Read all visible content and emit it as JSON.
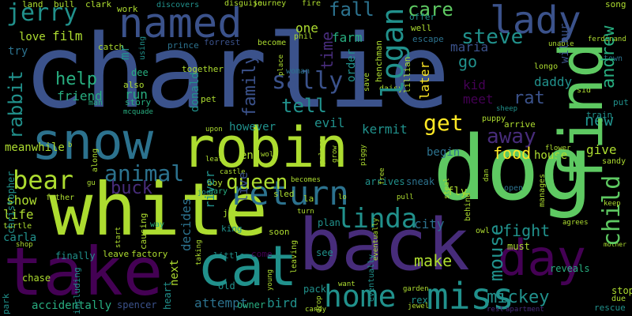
{
  "palette": {
    "background": "#000000",
    "deep_purple": "#440154",
    "purple": "#472c7a",
    "indigo": "#3b528b",
    "blue": "#2c728e",
    "teal": "#21918c",
    "green_teal": "#28ae80",
    "green": "#5ec962",
    "lime": "#addc30",
    "yellow": "#fde725"
  },
  "words": {
    "charlie": "charlie",
    "dog": "dog",
    "white": "white",
    "back": "back",
    "take": "take",
    "robin": "robin",
    "cat": "cat",
    "snow": "snow",
    "find": "find",
    "day": "day",
    "named": "named",
    "lady": "lady",
    "miss": "miss",
    "return": "return",
    "home": "home",
    "linda": "linda",
    "bear": "bear",
    "jerry": "jerry",
    "logan": "logan",
    "sally": "sally",
    "get": "get",
    "away": "away",
    "child": "child",
    "steve": "steve",
    "animal": "animal",
    "queen": "queen",
    "mickey": "mickey",
    "mouse": "mouse",
    "rabbit": "rabbit",
    "care": "care",
    "fall": "fall",
    "tell": "tell",
    "help": "help",
    "family": "family",
    "andrew": "andrew",
    "buck": "buck",
    "rat": "rat",
    "daddy": "daddy",
    "new": "new",
    "food": "food",
    "make": "make",
    "fight": "fight",
    "attempt": "attempt",
    "time": "time",
    "later": "later",
    "go": "go",
    "maria": "maria",
    "friend": "friend",
    "film": "film",
    "run": "run",
    "evil": "evil",
    "kermit": "kermit",
    "meet": "meet",
    "kid": "kid",
    "show": "show",
    "life": "life",
    "meanwhile": "meanwhile",
    "carla": "carla",
    "decides": "decides",
    "river": "river",
    "live": "live",
    "city": "city",
    "give": "give",
    "house": "house",
    "begin": "begin",
    "farm": "farm",
    "love": "love",
    "try": "try",
    "mr": "mr",
    "bird": "bird",
    "next": "next",
    "accidentally": "accidentally",
    "christopher": "christopher",
    "turtle": "turtle",
    "chase": "chase",
    "finally": "finally",
    "leave": "leave",
    "factory": "factory",
    "little": "little",
    "however": "however",
    "donald": "donald",
    "end": "end",
    "fly": "fly",
    "sneak": "sneak",
    "arrives": "arrives",
    "plan": "plan",
    "rex": "rex",
    "owner": "owner",
    "spencer": "spencer",
    "old": "old",
    "heart": "heart",
    "see": "see",
    "pack": "pack",
    "stop": "stop",
    "due": "due",
    "rescue": "rescue",
    "reveals": "reveals",
    "must": "must",
    "wilbur": "wilbur",
    "train": "train",
    "sandy": "sandy",
    "put": "put",
    "town": "town",
    "order": "order",
    "one": "one",
    "become": "become",
    "escape": "escape",
    "well": "well",
    "offer": "offer",
    "song": "song",
    "using": "using",
    "catch": "catch",
    "story": "story",
    "pet": "pet",
    "together": "together",
    "prince": "prince",
    "forrest": "forrest",
    "also": "also",
    "man": "man",
    "dee": "dee",
    "mcquade": "mcquade",
    "land": "land",
    "bull": "bull",
    "clark": "clark",
    "work": "work",
    "discovers": "discovers",
    "disguise": "disguise",
    "journey": "journey",
    "fire": "fire",
    "henchman": "henchman",
    "phil": "phil",
    "woman": "woman",
    "place": "place",
    "save": "save",
    "lillian": "lillian",
    "daisy": "daisy",
    "longo": "longo",
    "ferdinand": "ferdinand",
    "unable": "unable",
    "sid": "sid",
    "puppy": "puppy",
    "arrive": "arrive",
    "sheep": "sheep",
    "flower": "flower",
    "manages": "manages",
    "open": "open",
    "keep": "keep",
    "behind": "behind",
    "agrees": "agrees",
    "owl": "owl",
    "mother": "mother",
    "garden": "garden",
    "want": "want",
    "eventually": "eventually",
    "jewel": "jewel",
    "rest": "rest",
    "apartment": "apartment",
    "park": "park",
    "including": "including",
    "shop": "shop",
    "father": "father",
    "gu": "gu",
    "along": "along",
    "b": "b",
    "causing": "causing",
    "way": "way",
    "start": "start",
    "king": "king",
    "taking": "taking",
    "soon": "soon",
    "come": "come",
    "job": "job",
    "boy": "boy",
    "gary": "gary",
    "joe": "joe",
    "upon": "upon",
    "leaf": "leaf",
    "castle": "castle",
    "wolf": "wolf",
    "sled": "sled",
    "becomes": "becomes",
    "la": "la",
    "turn": "turn",
    "leaving": "leaving",
    "candy": "candy",
    "drop": "drop",
    "young": "young",
    "eventually2": "eventually",
    "pull": "pull",
    "steal": "steal",
    "dan": "dan",
    "free": "free",
    "piggy": "piggy",
    "grow": "grow",
    "palace": "palace",
    "lo": "lo"
  }
}
